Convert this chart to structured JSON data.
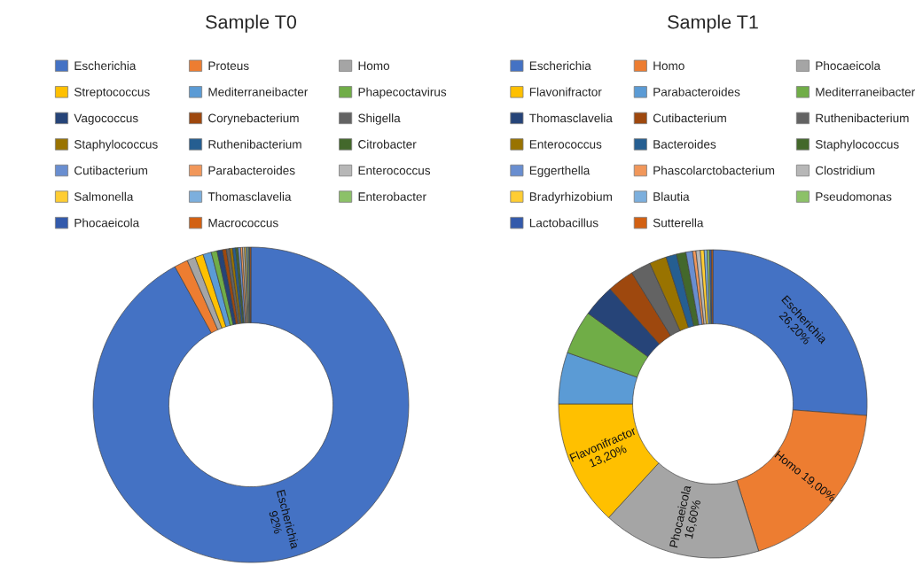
{
  "chart_data": [
    {
      "type": "donut",
      "title": "Sample T0",
      "legend": "top",
      "categories": [
        "Escherichia",
        "Proteus",
        "Homo",
        "Streptococcus",
        "Mediterraneibacter",
        "Phapecoctavirus",
        "Vagococcus",
        "Corynebacterium",
        "Shigella",
        "Staphylococcus",
        "Ruthenibacterium",
        "Citrobacter",
        "Cutibacterium",
        "Parabacteroides",
        "Enterococcus",
        "Salmonella",
        "Thomasclavelia",
        "Enterobacter",
        "Phocaeicola",
        "Macrococcus"
      ],
      "values": [
        92,
        1.4,
        0.85,
        0.85,
        0.85,
        0.6,
        0.55,
        0.4,
        0.35,
        0.3,
        0.3,
        0.25,
        0.25,
        0.2,
        0.2,
        0.15,
        0.15,
        0.15,
        0.1,
        0.1
      ],
      "colors": [
        "#4472c4",
        "#ed7d31",
        "#a5a5a5",
        "#ffc000",
        "#5b9bd5",
        "#70ad47",
        "#264478",
        "#9e480e",
        "#636363",
        "#997300",
        "#255e91",
        "#43682b",
        "#698ed0",
        "#f1975a",
        "#b7b7b7",
        "#ffcd33",
        "#7cafdd",
        "#8cc168",
        "#335aab",
        "#d26012"
      ],
      "value_labels": [
        "Escherichia\n92%",
        null,
        null,
        null,
        null,
        null,
        null,
        null,
        null,
        null,
        null,
        null,
        null,
        null,
        null,
        null,
        null,
        null,
        null,
        null
      ]
    },
    {
      "type": "donut",
      "title": "Sample T1",
      "legend": "top",
      "categories": [
        "Escherichia",
        "Homo",
        "Phocaeicola",
        "Flavonifractor",
        "Parabacteroides",
        "Mediterraneibacter",
        "Thomasclavelia",
        "Cutibacterium",
        "Ruthenibacterium",
        "Enterococcus",
        "Bacteroides",
        "Staphylococcus",
        "Eggerthella",
        "Phascolarctobacterium",
        "Clostridium",
        "Bradyrhizobium",
        "Blautia",
        "Pseudomonas",
        "Lactobacillus",
        "Sutterella"
      ],
      "values": [
        26.2,
        19.0,
        16.6,
        13.2,
        5.4,
        4.6,
        3.4,
        2.8,
        2.1,
        1.8,
        1.1,
        1.0,
        0.7,
        0.35,
        0.45,
        0.4,
        0.3,
        0.25,
        0.2,
        0.15
      ],
      "colors": [
        "#4472c4",
        "#ed7d31",
        "#a5a5a5",
        "#ffc000",
        "#5b9bd5",
        "#70ad47",
        "#264478",
        "#9e480e",
        "#636363",
        "#997300",
        "#255e91",
        "#43682b",
        "#698ed0",
        "#f1975a",
        "#b7b7b7",
        "#ffcd33",
        "#7cafdd",
        "#8cc168",
        "#335aab",
        "#d26012"
      ],
      "value_labels": [
        "Escherichia\n26,20%",
        "Homo 19,00%",
        "Phocaeicola\n16,60%",
        "Flavonifractor\n13,20%",
        null,
        null,
        null,
        null,
        null,
        null,
        null,
        null,
        null,
        null,
        null,
        null,
        null,
        null,
        null,
        null
      ]
    }
  ]
}
